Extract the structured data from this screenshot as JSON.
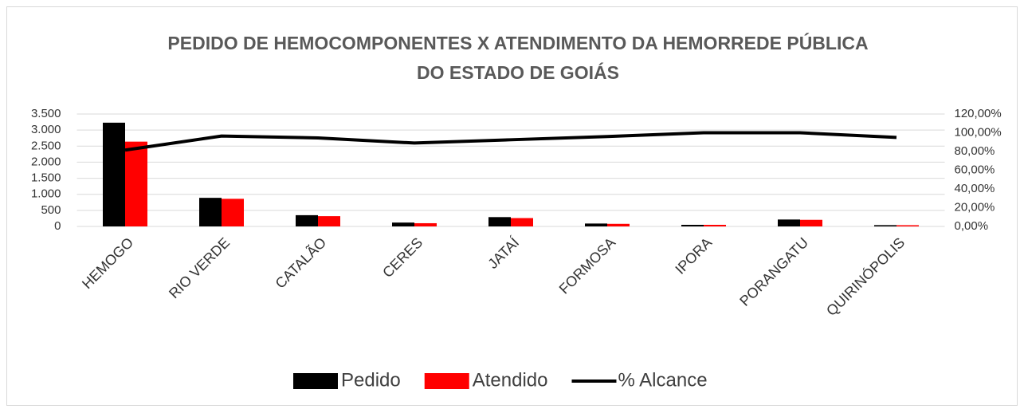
{
  "chart_data": {
    "type": "bar",
    "title": [
      "PEDIDO DE HEMOCOMPONENTES X ATENDIMENTO DA HEMORREDE PÚBLICA",
      "DO ESTADO DE GOIÁS"
    ],
    "categories": [
      "HEMOGO",
      "RIO VERDE",
      "CATALÃO",
      "CERES",
      "JATAÍ",
      "FORMOSA",
      "IPORA",
      "PORANGATU",
      "QUIRINÓPOLIS"
    ],
    "series": [
      {
        "name": "Pedido",
        "type": "bar",
        "color": "#000000",
        "values": [
          3230,
          890,
          350,
          120,
          290,
          90,
          50,
          215,
          40
        ]
      },
      {
        "name": "Atendido",
        "type": "bar",
        "color": "#ff0000",
        "values": [
          2640,
          860,
          320,
          100,
          260,
          80,
          50,
          205,
          38
        ]
      },
      {
        "name": "% Alcance",
        "type": "line",
        "axis": "y2",
        "color": "#000000",
        "values": [
          81.5,
          96.5,
          94.5,
          89,
          92.5,
          96,
          100,
          100,
          95
        ]
      }
    ],
    "ylim": [
      0,
      3500
    ],
    "yticks": [
      0,
      500,
      {
        "value": 1000,
        "label": "1.000"
      },
      {
        "value": 1500,
        "label": "1.500"
      },
      {
        "value": 2000,
        "label": "2.000"
      },
      {
        "value": 2500,
        "label": "2.500"
      },
      {
        "value": 3000,
        "label": "3.000"
      },
      {
        "value": 3500,
        "label": "3.500"
      }
    ],
    "y2lim": [
      0,
      120
    ],
    "y2ticks": [
      {
        "value": 0,
        "label": "0,00%"
      },
      {
        "value": 20,
        "label": "20,00%"
      },
      {
        "value": 40,
        "label": "40,00%"
      },
      {
        "value": 60,
        "label": "60,00%"
      },
      {
        "value": 80,
        "label": "80,00%"
      },
      {
        "value": 100,
        "label": "100,00%"
      },
      {
        "value": 120,
        "label": "120,00%"
      }
    ],
    "grid": true,
    "legend": "bottom"
  }
}
